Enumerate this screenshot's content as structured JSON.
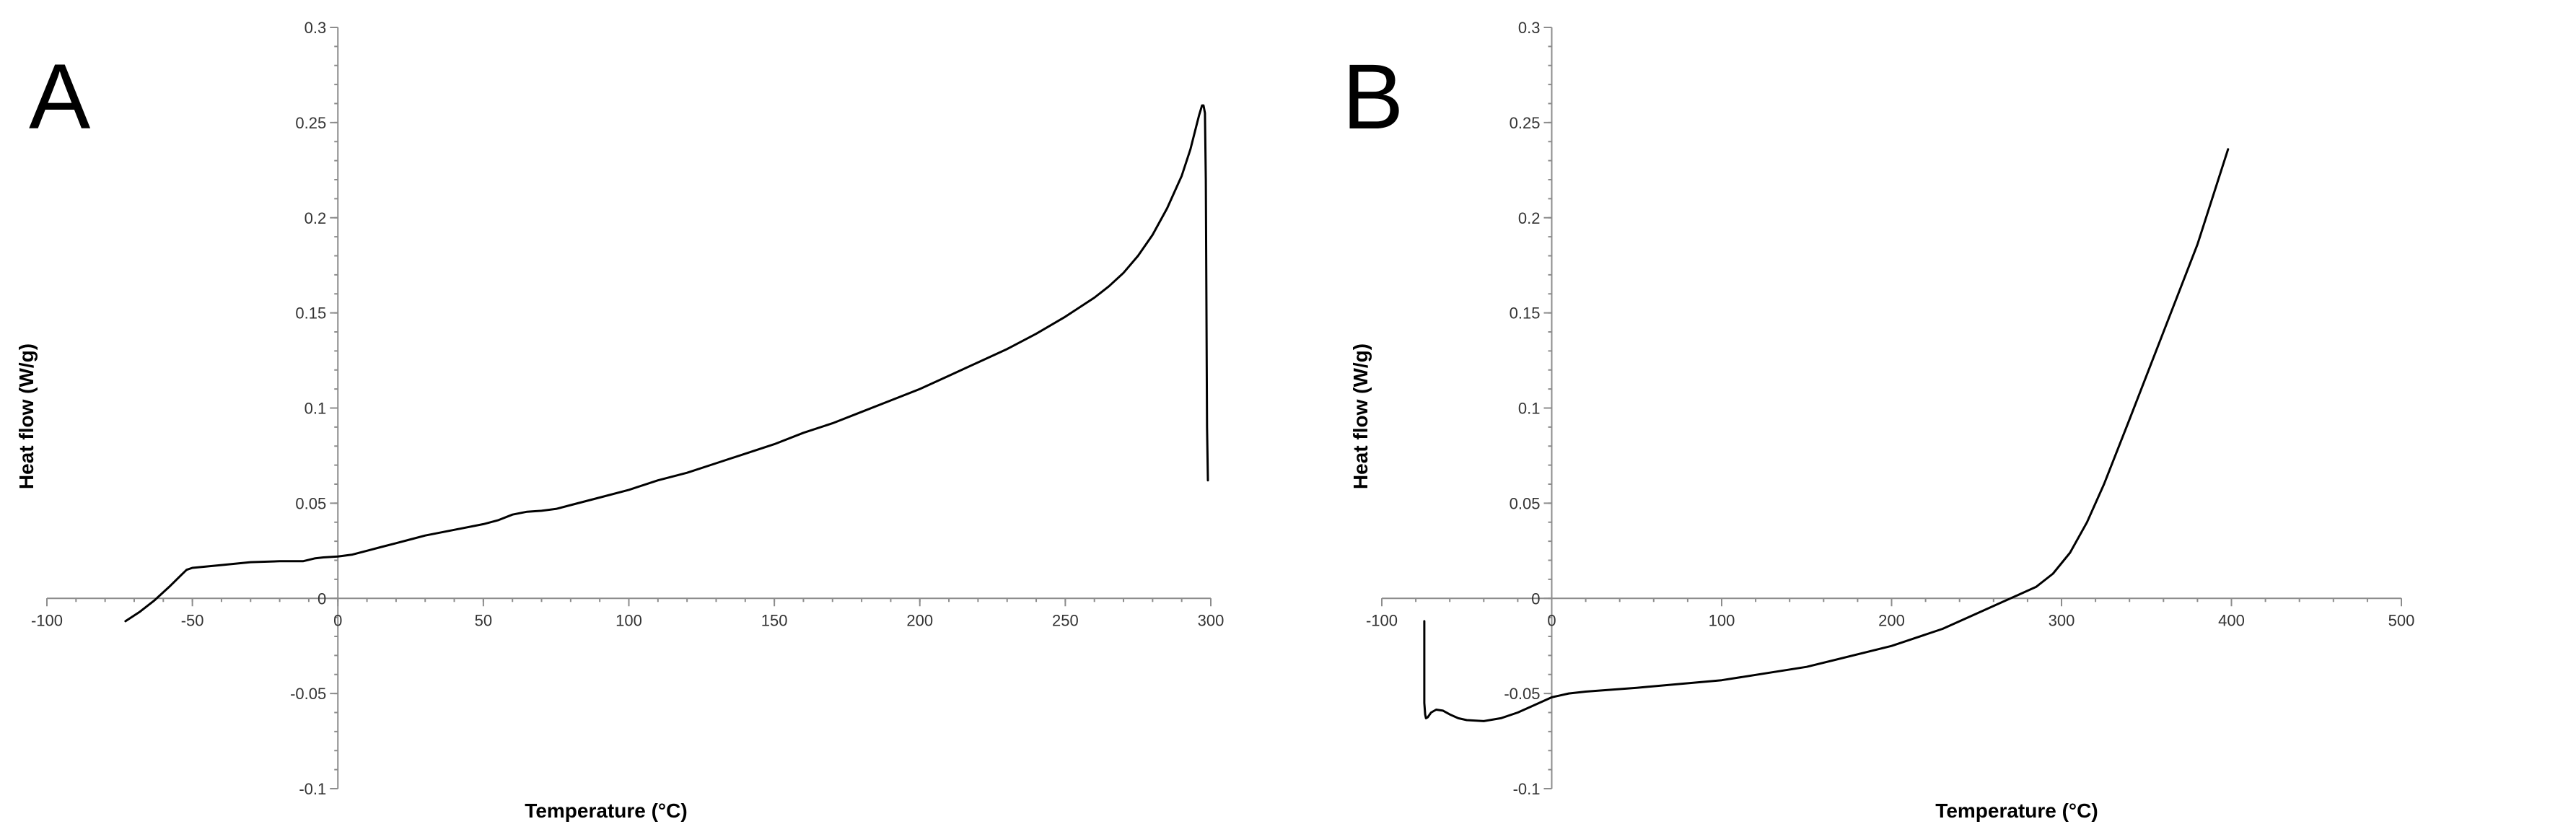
{
  "chart_data": [
    {
      "panel_label": "A",
      "type": "line",
      "xlabel": "Temperature (°C)",
      "ylabel": "Heat flow (W/g)",
      "xlim": [
        -100,
        300
      ],
      "ylim": [
        -0.1,
        0.3
      ],
      "x_ticks": [
        -100,
        -50,
        0,
        50,
        100,
        150,
        200,
        250,
        300
      ],
      "y_ticks": [
        -0.1,
        -0.05,
        0,
        0.05,
        0.1,
        0.15,
        0.2,
        0.25,
        0.3
      ],
      "x_tick_labels": [
        "-100",
        "-50",
        "0",
        "50",
        "100",
        "150",
        "200",
        "250",
        "300"
      ],
      "y_tick_labels": [
        "-0.1",
        "-0.05",
        "0",
        "0.05",
        "0.1",
        "0.15",
        "0.2",
        "0.25",
        "0.3"
      ],
      "grid": false,
      "series": [
        {
          "color": "#000000",
          "x": [
            -73,
            -68,
            -63,
            -58,
            -54,
            -52,
            -50,
            -40,
            -30,
            -20,
            -12,
            -8,
            -5,
            0,
            5,
            10,
            15,
            20,
            25,
            30,
            40,
            50,
            55,
            60,
            65,
            70,
            75,
            80,
            90,
            100,
            110,
            120,
            130,
            140,
            150,
            160,
            170,
            180,
            190,
            200,
            210,
            220,
            230,
            240,
            250,
            260,
            265,
            270,
            275,
            280,
            285,
            290,
            293,
            295,
            296,
            297,
            297.5,
            298,
            298.3,
            298.5,
            298.7,
            299
          ],
          "y": [
            -0.012,
            -0.007,
            -0.001,
            0.006,
            0.012,
            0.015,
            0.016,
            0.0175,
            0.019,
            0.0195,
            0.0195,
            0.021,
            0.0215,
            0.022,
            0.023,
            0.025,
            0.027,
            0.029,
            0.031,
            0.033,
            0.036,
            0.039,
            0.041,
            0.044,
            0.0455,
            0.046,
            0.047,
            0.049,
            0.053,
            0.057,
            0.062,
            0.066,
            0.071,
            0.076,
            0.081,
            0.087,
            0.092,
            0.098,
            0.104,
            0.11,
            0.117,
            0.124,
            0.131,
            0.139,
            0.148,
            0.158,
            0.164,
            0.171,
            0.18,
            0.191,
            0.205,
            0.222,
            0.236,
            0.248,
            0.254,
            0.259,
            0.259,
            0.255,
            0.22,
            0.15,
            0.09,
            0.062
          ]
        }
      ]
    },
    {
      "panel_label": "B",
      "type": "line",
      "xlabel": "Temperature (°C)",
      "ylabel": "Heat flow (W/g)",
      "xlim": [
        -100,
        500
      ],
      "ylim": [
        -0.1,
        0.3
      ],
      "x_ticks": [
        -100,
        0,
        100,
        200,
        300,
        400,
        500
      ],
      "y_ticks": [
        -0.1,
        -0.05,
        0,
        0.05,
        0.1,
        0.15,
        0.2,
        0.25,
        0.3
      ],
      "x_tick_labels": [
        "-100",
        "0",
        "100",
        "200",
        "300",
        "400",
        "500"
      ],
      "y_tick_labels": [
        "-0.1",
        "-0.05",
        "0",
        "0.05",
        "0.1",
        "0.15",
        "0.2",
        "0.25",
        "0.3"
      ],
      "grid": false,
      "series": [
        {
          "color": "#000000",
          "x": [
            -75,
            -75,
            -75,
            -74.5,
            -74,
            -73,
            -71,
            -68,
            -64,
            -60,
            -55,
            -50,
            -40,
            -30,
            -20,
            -10,
            0,
            10,
            20,
            50,
            100,
            150,
            200,
            230,
            250,
            265,
            275,
            285,
            295,
            305,
            315,
            325,
            340,
            360,
            380,
            398
          ],
          "y": [
            -0.012,
            -0.035,
            -0.055,
            -0.061,
            -0.063,
            -0.0625,
            -0.06,
            -0.0585,
            -0.059,
            -0.061,
            -0.063,
            -0.064,
            -0.0645,
            -0.063,
            -0.06,
            -0.056,
            -0.052,
            -0.05,
            -0.049,
            -0.047,
            -0.043,
            -0.036,
            -0.025,
            -0.016,
            -0.008,
            -0.002,
            0.002,
            0.006,
            0.013,
            0.024,
            0.04,
            0.06,
            0.094,
            0.14,
            0.186,
            0.236
          ]
        }
      ]
    }
  ]
}
